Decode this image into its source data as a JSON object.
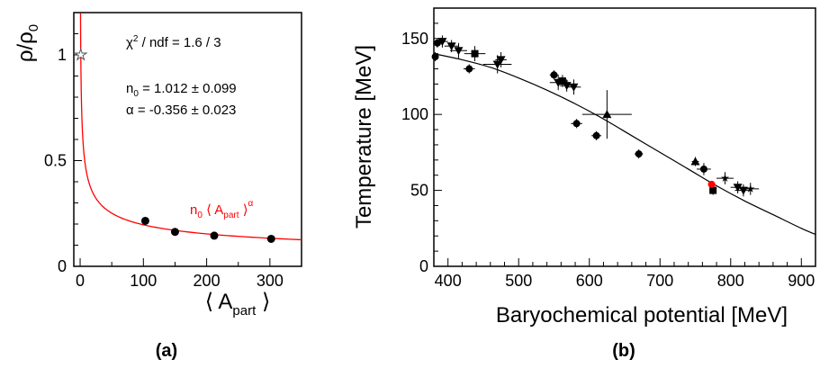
{
  "chart_data": [
    {
      "type": "scatter",
      "panel_label": "(a)",
      "ylabel_base": "ρ/ρ",
      "ylabel_sub": "0",
      "xlabel_base": "⟨ A",
      "xlabel_sub": "part",
      "xlabel_end": "⟩",
      "xlim": [
        -10,
        350
      ],
      "ylim": [
        0,
        1.2
      ],
      "x_ticks": [
        0,
        100,
        200,
        300
      ],
      "y_ticks": [
        0,
        0.5,
        1
      ],
      "y_tick_labels": [
        "0",
        "0.5",
        "1"
      ],
      "reference_point": {
        "x": 1,
        "y": 1.0,
        "marker": "star"
      },
      "points": [
        {
          "x": 103,
          "y": 0.215,
          "yerr": 0.018
        },
        {
          "x": 150,
          "y": 0.163,
          "yerr": 0.016
        },
        {
          "x": 212,
          "y": 0.145,
          "yerr": 0.015
        },
        {
          "x": 302,
          "y": 0.13,
          "yerr": 0.015
        }
      ],
      "fit": {
        "n0": 1.012,
        "alpha": -0.356,
        "color": "#ff0000"
      },
      "fit_label": {
        "n0": "n",
        "n0_sub": "0",
        "mid": "⟨ A",
        "sub": "part",
        "end": "⟩",
        "sup": "α"
      },
      "annotations": {
        "chi2": "χ",
        "chi2_sup": "2",
        "chi2_rest": "/ ndf = 1.6 / 3",
        "n0_label": "n",
        "n0_sub": "0",
        "n0_value": "=  1.012 ± 0.099",
        "alpha_line": "α  = -0.356 ± 0.023"
      }
    },
    {
      "type": "scatter",
      "panel_label": "(b)",
      "xlabel": "Baryochemical potential [MeV]",
      "ylabel": "Temperature [MeV]",
      "xlim": [
        380,
        920
      ],
      "ylim": [
        0,
        170
      ],
      "x_ticks": [
        400,
        500,
        600,
        700,
        800,
        900
      ],
      "y_ticks": [
        0,
        50,
        100,
        150
      ],
      "curve": [
        [
          380,
          140
        ],
        [
          420,
          136
        ],
        [
          460,
          131
        ],
        [
          500,
          124
        ],
        [
          540,
          116
        ],
        [
          580,
          107
        ],
        [
          620,
          97
        ],
        [
          660,
          86
        ],
        [
          700,
          75
        ],
        [
          740,
          64
        ],
        [
          780,
          53
        ],
        [
          820,
          43
        ],
        [
          860,
          34
        ],
        [
          900,
          25
        ],
        [
          920,
          21
        ]
      ],
      "points": [
        {
          "x": 382,
          "y": 138,
          "marker": "circle",
          "xerr": 4,
          "yerr": 3
        },
        {
          "x": 385,
          "y": 147,
          "marker": "circle",
          "xerr": 6,
          "yerr": 3
        },
        {
          "x": 392,
          "y": 148,
          "marker": "triangle-down",
          "xerr": 8,
          "yerr": 4
        },
        {
          "x": 405,
          "y": 145,
          "marker": "triangle-down",
          "xerr": 10,
          "yerr": 4
        },
        {
          "x": 415,
          "y": 142,
          "marker": "triangle-down",
          "xerr": 12,
          "yerr": 5
        },
        {
          "x": 430,
          "y": 130,
          "marker": "circle",
          "xerr": 8,
          "yerr": 3
        },
        {
          "x": 438,
          "y": 140,
          "marker": "square",
          "xerr": 15,
          "yerr": 5
        },
        {
          "x": 470,
          "y": 133,
          "marker": "triangle-down",
          "xerr": 20,
          "yerr": 6
        },
        {
          "x": 475,
          "y": 136,
          "marker": "triangle-down",
          "xerr": 8,
          "yerr": 5
        },
        {
          "x": 550,
          "y": 126,
          "marker": "circle",
          "xerr": 6,
          "yerr": 3
        },
        {
          "x": 556,
          "y": 121,
          "marker": "triangle-down",
          "xerr": 12,
          "yerr": 5
        },
        {
          "x": 562,
          "y": 122,
          "marker": "square",
          "xerr": 8,
          "yerr": 4
        },
        {
          "x": 568,
          "y": 119,
          "marker": "triangle-down",
          "xerr": 10,
          "yerr": 4
        },
        {
          "x": 578,
          "y": 118,
          "marker": "triangle-down",
          "xerr": 10,
          "yerr": 5
        },
        {
          "x": 582,
          "y": 94,
          "marker": "circle",
          "xerr": 8,
          "yerr": 3
        },
        {
          "x": 610,
          "y": 86,
          "marker": "circle",
          "xerr": 7,
          "yerr": 3
        },
        {
          "x": 625,
          "y": 100,
          "marker": "triangle-up",
          "xerr": 35,
          "yerr": 16
        },
        {
          "x": 670,
          "y": 74,
          "marker": "circle",
          "xerr": 6,
          "yerr": 3
        },
        {
          "x": 750,
          "y": 69,
          "marker": "triangle-up",
          "xerr": 5,
          "yerr": 3
        },
        {
          "x": 762,
          "y": 64,
          "marker": "circle",
          "xerr": 10,
          "yerr": 4
        },
        {
          "x": 775,
          "y": 50,
          "marker": "square",
          "xerr": 5,
          "yerr": 3
        },
        {
          "x": 792,
          "y": 58,
          "marker": "star",
          "xerr": 12,
          "yerr": 4
        },
        {
          "x": 810,
          "y": 52,
          "marker": "triangle-down",
          "xerr": 10,
          "yerr": 4
        },
        {
          "x": 818,
          "y": 50,
          "marker": "triangle-down",
          "xerr": 12,
          "yerr": 4
        },
        {
          "x": 828,
          "y": 51,
          "marker": "star",
          "xerr": 12,
          "yerr": 4
        },
        {
          "x": 773,
          "y": 54,
          "marker": "circle",
          "color": "#ff0000",
          "xerr": 5,
          "yerr": 2
        }
      ]
    }
  ]
}
